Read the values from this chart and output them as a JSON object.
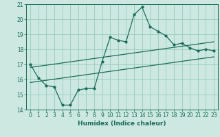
{
  "title": "",
  "xlabel": "Humidex (Indice chaleur)",
  "ylabel": "",
  "background_color": "#cce8e0",
  "grid_color": "#99ccbb",
  "line_color": "#1a6b5a",
  "xlim": [
    -0.5,
    23.5
  ],
  "ylim": [
    14,
    21
  ],
  "yticks": [
    14,
    15,
    16,
    17,
    18,
    19,
    20,
    21
  ],
  "xticks": [
    0,
    1,
    2,
    3,
    4,
    5,
    6,
    7,
    8,
    9,
    10,
    11,
    12,
    13,
    14,
    15,
    16,
    17,
    18,
    19,
    20,
    21,
    22,
    23
  ],
  "main_x": [
    0,
    1,
    2,
    3,
    4,
    5,
    6,
    7,
    8,
    9,
    10,
    11,
    12,
    13,
    14,
    15,
    16,
    17,
    18,
    19,
    20,
    21,
    22,
    23
  ],
  "main_y": [
    17.0,
    16.1,
    15.6,
    15.5,
    14.3,
    14.3,
    15.3,
    15.4,
    15.4,
    17.2,
    18.8,
    18.6,
    18.5,
    20.3,
    20.8,
    19.5,
    19.2,
    18.9,
    18.3,
    18.4,
    18.1,
    17.9,
    18.0,
    17.9
  ],
  "trend1_x": [
    0,
    23
  ],
  "trend1_y": [
    16.8,
    18.5
  ],
  "trend2_x": [
    0,
    23
  ],
  "trend2_y": [
    15.8,
    17.5
  ],
  "xlabel_fontsize": 6.5,
  "tick_fontsize": 5.5,
  "linewidth": 0.9,
  "marker_size": 2.0
}
